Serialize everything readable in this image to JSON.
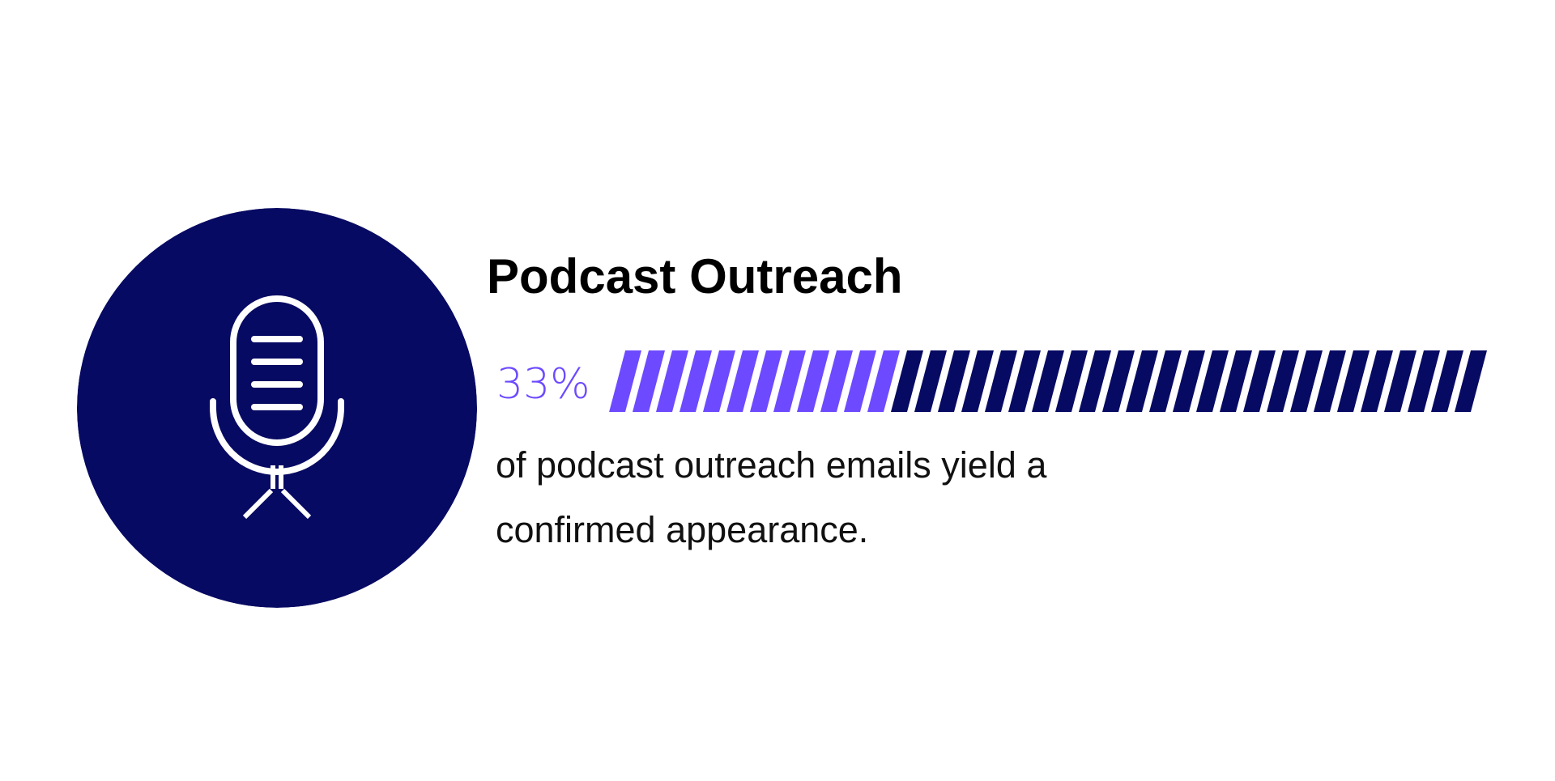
{
  "title": "Podcast Outreach",
  "stat": {
    "label": "33%",
    "fraction": 0.33
  },
  "description": "of podcast outreach emails yield a confirmed appearance.",
  "colors": {
    "background": "#ffffff",
    "navy": "#070a62",
    "accent": "#6d4aff",
    "icon_stroke": "#ffffff",
    "title": "#000000",
    "body": "#111111"
  },
  "icon": "microphone-icon"
}
